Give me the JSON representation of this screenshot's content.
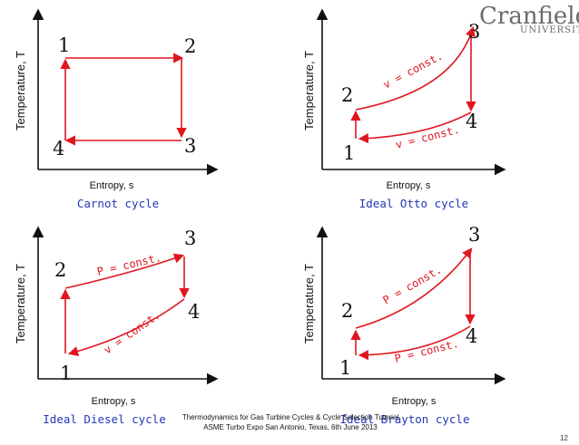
{
  "logo": {
    "name": "Cranfield",
    "sub": "UNIVERSITY"
  },
  "axes": {
    "ylabel": "Temperature, T",
    "xlabel": "Entropy, s"
  },
  "diagrams": [
    {
      "caption": "Carnot cycle",
      "points": [
        "1",
        "2",
        "3",
        "4"
      ]
    },
    {
      "caption": "Ideal Otto cycle",
      "points": [
        "1",
        "2",
        "3",
        "4"
      ],
      "upper_label": "v = const.",
      "lower_label": "v = const."
    },
    {
      "caption": "Ideal Diesel cycle",
      "points": [
        "1",
        "2",
        "3",
        "4"
      ],
      "upper_label": "P = const.",
      "lower_label": "v = const."
    },
    {
      "caption": "Ideal Brayton cycle",
      "points": [
        "1",
        "2",
        "3",
        "4"
      ],
      "upper_label": "P = const.",
      "lower_label": "P = const."
    }
  ],
  "footer": {
    "line1": "Thermodynamics for Gas Turbine Cycles & Cycle Selection Tutorial",
    "line2": "ASME Turbo Expo San Antonio, Texas, 6th June 2013"
  },
  "page_number": "12",
  "colors": {
    "curve": "#e0161f",
    "caption": "#2436b8",
    "axis": "#111111"
  }
}
